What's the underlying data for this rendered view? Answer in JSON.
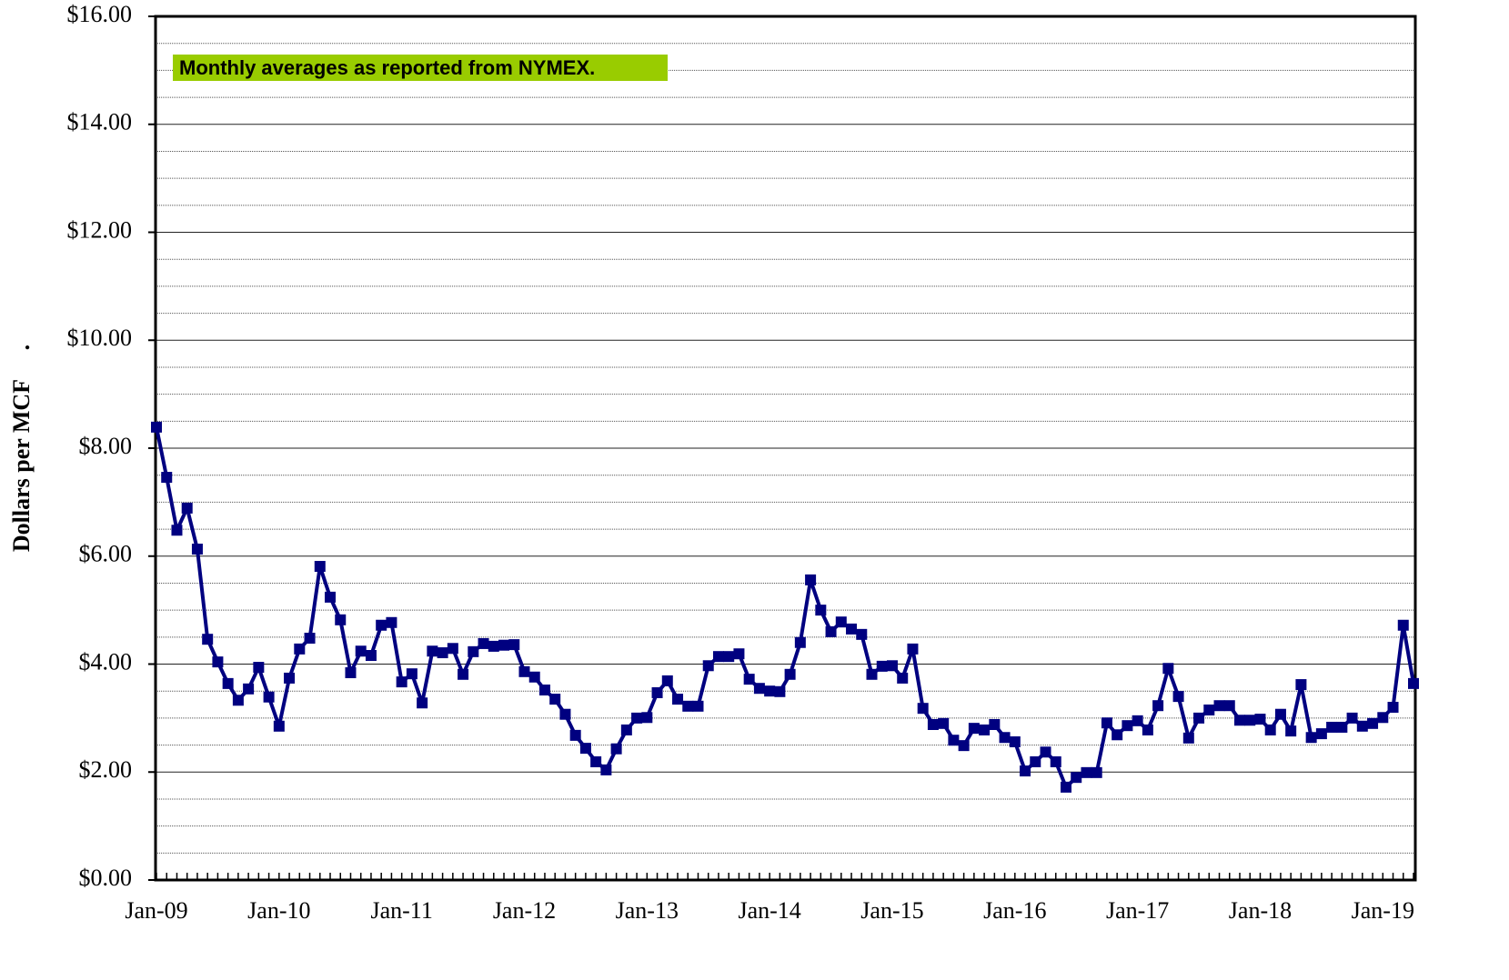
{
  "chart_data": {
    "type": "line",
    "y_label": "Dollars per MCF     .",
    "annotation": "Monthly averages as reported from NYMEX.",
    "annotation_color": "#99cc00",
    "categories": [
      "Jan-09",
      null,
      null,
      null,
      null,
      null,
      null,
      null,
      null,
      null,
      null,
      null,
      "Jan-10",
      null,
      null,
      null,
      null,
      null,
      null,
      null,
      null,
      null,
      null,
      null,
      "Jan-11",
      null,
      null,
      null,
      null,
      null,
      null,
      null,
      null,
      null,
      null,
      null,
      "Jan-12",
      null,
      null,
      null,
      null,
      null,
      null,
      null,
      null,
      null,
      null,
      null,
      "Jan-13",
      null,
      null,
      null,
      null,
      null,
      null,
      null,
      null,
      null,
      null,
      null,
      "Jan-14",
      null,
      null,
      null,
      null,
      null,
      null,
      null,
      null,
      null,
      null,
      null,
      "Jan-15",
      null,
      null,
      null,
      null,
      null,
      null,
      null,
      null,
      null,
      null,
      null,
      "Jan-16",
      null,
      null,
      null,
      null,
      null,
      null,
      null,
      null,
      null,
      null,
      null,
      "Jan-17",
      null,
      null,
      null,
      null,
      null,
      null,
      null,
      null,
      null,
      null,
      null,
      "Jan-18",
      null,
      null,
      null,
      null,
      null,
      null,
      null,
      null,
      null,
      null,
      null,
      "Jan-19",
      null,
      null,
      null
    ],
    "series": [
      {
        "name": null,
        "color": "#000080",
        "values": [
          8.39,
          7.46,
          6.48,
          6.89,
          6.13,
          4.46,
          4.04,
          3.64,
          3.33,
          3.54,
          3.94,
          3.39,
          2.85,
          3.74,
          4.28,
          4.48,
          5.81,
          5.24,
          4.82,
          3.84,
          4.24,
          4.16,
          4.72,
          4.77,
          3.67,
          3.82,
          3.28,
          4.24,
          4.21,
          4.29,
          3.81,
          4.23,
          4.38,
          4.33,
          4.35,
          4.36,
          3.86,
          3.76,
          3.52,
          3.35,
          3.07,
          2.68,
          2.44,
          2.19,
          2.04,
          2.43,
          2.78,
          3.0,
          3.01,
          3.47,
          3.69,
          3.35,
          3.22,
          3.22,
          3.97,
          4.14,
          4.14,
          4.19,
          3.72,
          3.55,
          3.5,
          3.49,
          3.81,
          4.4,
          5.56,
          5.0,
          4.6,
          4.78,
          4.65,
          4.55,
          3.81,
          3.96,
          3.97,
          3.74,
          4.28,
          3.18,
          2.88,
          2.9,
          2.59,
          2.49,
          2.81,
          2.78,
          2.88,
          2.64,
          2.56,
          2.02,
          2.19,
          2.37,
          2.19,
          1.72,
          1.9,
          1.99,
          1.99,
          2.91,
          2.69,
          2.86,
          2.95,
          2.78,
          3.23,
          3.92,
          3.4,
          2.63,
          3.0,
          3.15,
          3.23,
          3.23,
          2.96,
          2.96,
          2.98,
          2.78,
          3.07,
          2.76,
          3.62,
          2.64,
          2.71,
          2.83,
          2.83,
          3.0,
          2.85,
          2.9,
          3.01,
          3.2,
          4.72,
          3.64
        ]
      }
    ],
    "ylim": [
      0,
      16
    ],
    "yticks": [
      {
        "value": 0,
        "label": "$0.00"
      },
      {
        "value": 2,
        "label": "$2.00"
      },
      {
        "value": 4,
        "label": "$4.00"
      },
      {
        "value": 6,
        "label": "$6.00"
      },
      {
        "value": 8,
        "label": "$8.00"
      },
      {
        "value": 10,
        "label": "$10.00"
      },
      {
        "value": 12,
        "label": "$12.00"
      },
      {
        "value": 14,
        "label": "$14.00"
      },
      {
        "value": 16,
        "label": "$16.00"
      }
    ],
    "minor_yticks": [
      0.5,
      1,
      1.5,
      2.5,
      3,
      3.5,
      4.5,
      5,
      5.5,
      6.5,
      7,
      7.5,
      8.5,
      9,
      9.5,
      10.5,
      11,
      11.5,
      12.5,
      13,
      13.5,
      14.5,
      15,
      15.5
    ],
    "grid": true
  }
}
